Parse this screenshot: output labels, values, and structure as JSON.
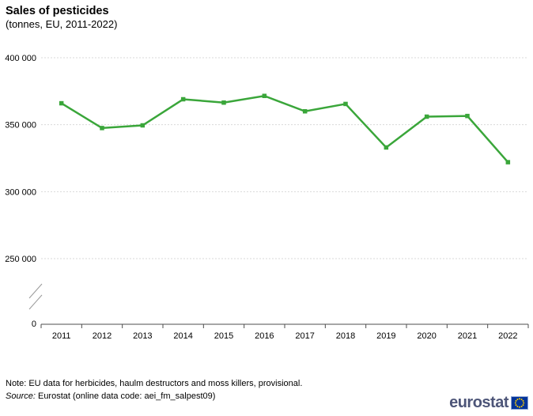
{
  "header": {
    "title": "Sales of pesticides",
    "subtitle": "(tonnes, EU, 2011-2022)"
  },
  "chart_data": {
    "type": "line",
    "title": "Sales of pesticides",
    "subtitle": "(tonnes, EU, 2011-2022)",
    "categories": [
      "2011",
      "2012",
      "2013",
      "2014",
      "2015",
      "2016",
      "2017",
      "2018",
      "2019",
      "2020",
      "2021",
      "2022"
    ],
    "values": [
      366000,
      347500,
      349500,
      369000,
      366500,
      371500,
      360000,
      365500,
      333000,
      356000,
      356500,
      322000
    ],
    "unit": "tonnes",
    "xlabel": "",
    "ylabel": "",
    "y_axis": {
      "tick_labels": [
        "400 000",
        "350 000",
        "300 000",
        "250 000"
      ],
      "tick_values": [
        400000,
        350000,
        300000,
        250000
      ],
      "zero_label": "0",
      "axis_break": true
    },
    "ylim_display": [
      250000,
      400000
    ],
    "grid": "horizontal-dashed",
    "legend": "none",
    "line_color": "#3aa63a",
    "grid_color": "#d9d9d9",
    "axis_color": "#4d4d4d",
    "marker": "square"
  },
  "footer": {
    "note": "Note: EU data for herbicides, haulm destructors and moss killers, provisional.",
    "source_prefix": "Source:",
    "source_text": " Eurostat (online data code: aei_fm_salpest09)"
  },
  "logo": {
    "text": "eurostat",
    "text_color": "#4d5578",
    "flag_bg": "#003399",
    "star_color": "#ffcc00"
  }
}
